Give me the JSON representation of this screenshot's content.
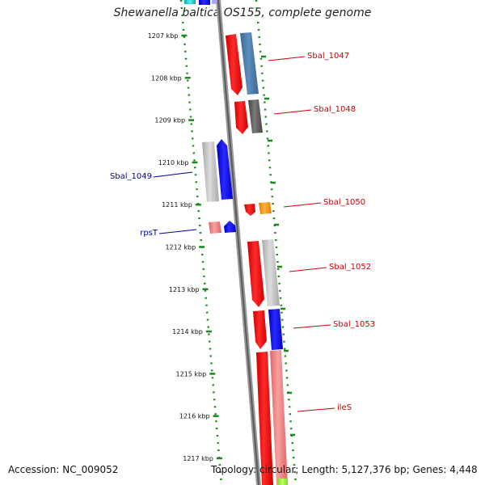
{
  "title": "Shewanella baltica OS155, complete genome",
  "footer": {
    "accession": "Accession: NC_009052",
    "stats": "Topology: circular; Length: 5,127,376 bp; Genes: 4,448"
  },
  "ticks": [
    "1207 kbp",
    "1208 kbp",
    "1209 kbp",
    "1210 kbp",
    "1211 kbp",
    "1212 kbp",
    "1213 kbp",
    "1214 kbp",
    "1215 kbp",
    "1216 kbp",
    "1217 kbp"
  ],
  "gene_labels": [
    {
      "text": "Sbal_1047",
      "side": "right",
      "color": "#cc0000"
    },
    {
      "text": "Sbal_1048",
      "side": "right",
      "color": "#cc0000"
    },
    {
      "text": "Sbal_1049",
      "side": "left",
      "color": "#000099"
    },
    {
      "text": "Sbal_1050",
      "side": "right",
      "color": "#cc0000"
    },
    {
      "text": "rpsT",
      "side": "left",
      "color": "#000099"
    },
    {
      "text": "Sbal_1052",
      "side": "right",
      "color": "#cc0000"
    },
    {
      "text": "Sbal_1053",
      "side": "right",
      "color": "#cc0000"
    },
    {
      "text": "ileS",
      "side": "right",
      "color": "#cc0000"
    }
  ],
  "colors": {
    "tick": "#1a8a1a",
    "backbone": "#888888",
    "forward_red": "#ff0000",
    "reverse_blue": "#0000ff",
    "steel_blue": "#4477aa",
    "dark_gray": "#555555",
    "light_gray": "#bbbbbb",
    "pink": "#f08080",
    "orange": "#ff9900",
    "cyan": "#22cccc",
    "lime": "#99ff33"
  }
}
